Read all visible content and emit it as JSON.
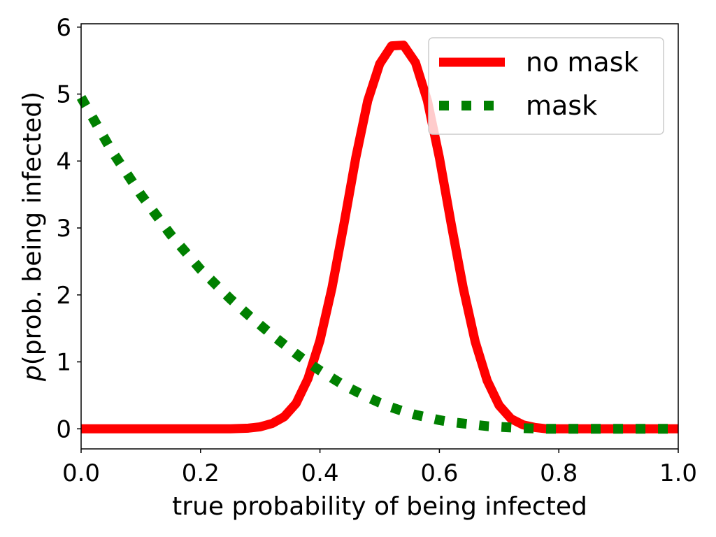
{
  "chart_data": {
    "type": "line",
    "xlabel": "true probability of being infected",
    "ylabel_italic": "p",
    "ylabel_rest": "(prob. being infected)",
    "xlim": [
      0.0,
      1.0
    ],
    "ylim": [
      -0.3,
      6.05
    ],
    "x_ticks": [
      0.0,
      0.2,
      0.4,
      0.6,
      0.8,
      1.0
    ],
    "x_tick_labels": [
      "0.0",
      "0.2",
      "0.4",
      "0.6",
      "0.8",
      "1.0"
    ],
    "y_ticks": [
      0,
      1,
      2,
      3,
      4,
      5,
      6
    ],
    "y_tick_labels": [
      "0",
      "1",
      "2",
      "3",
      "4",
      "5",
      "6"
    ],
    "grid": false,
    "legend_position": "top-right",
    "x": [
      0.0,
      0.05,
      0.1,
      0.15,
      0.2,
      0.25,
      0.28,
      0.3,
      0.32,
      0.34,
      0.36,
      0.38,
      0.4,
      0.42,
      0.44,
      0.46,
      0.48,
      0.5,
      0.52,
      0.54,
      0.56,
      0.58,
      0.6,
      0.62,
      0.64,
      0.66,
      0.68,
      0.7,
      0.72,
      0.74,
      0.76,
      0.78,
      0.8,
      0.85,
      0.9,
      0.95,
      1.0
    ],
    "series": [
      {
        "name": "no mask",
        "color": "#ff0000",
        "style": "solid",
        "values": [
          0.0,
          0.0,
          0.0,
          0.0,
          0.0,
          0.0,
          0.01,
          0.03,
          0.08,
          0.18,
          0.38,
          0.75,
          1.32,
          2.1,
          3.05,
          4.05,
          4.9,
          5.45,
          5.72,
          5.73,
          5.47,
          4.9,
          4.05,
          3.05,
          2.1,
          1.3,
          0.72,
          0.35,
          0.15,
          0.06,
          0.02,
          0.0,
          0.0,
          0.0,
          0.0,
          0.0,
          0.0
        ]
      },
      {
        "name": "mask",
        "color": "#008000",
        "style": "dotted",
        "values": [
          4.95,
          4.17,
          3.5,
          2.9,
          2.38,
          1.94,
          1.7,
          1.55,
          1.4,
          1.26,
          1.12,
          0.99,
          0.87,
          0.76,
          0.65,
          0.56,
          0.47,
          0.39,
          0.32,
          0.26,
          0.21,
          0.17,
          0.13,
          0.1,
          0.08,
          0.06,
          0.04,
          0.03,
          0.02,
          0.01,
          0.005,
          0.0,
          0.0,
          0.0,
          0.0,
          0.0,
          0.0
        ]
      }
    ]
  }
}
